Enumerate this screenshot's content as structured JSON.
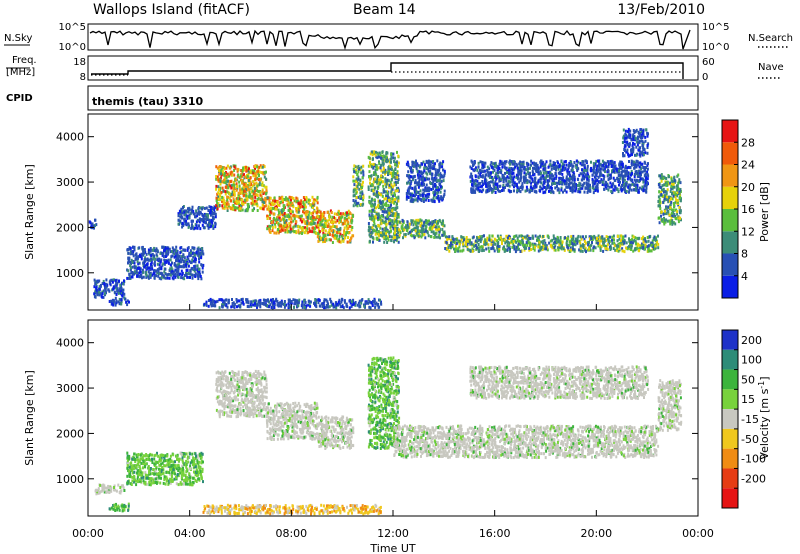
{
  "header": {
    "station": "Wallops Island (fitACF)",
    "beam": "Beam 14",
    "date": "13/Feb/2010"
  },
  "strips": {
    "nsky_label": "N.Sky",
    "nsky_ticks": [
      "10^5",
      "10^0"
    ],
    "nsearch_label": "N.Search",
    "nsearch_ticks": [
      "10^5",
      "10^0"
    ],
    "freq_label": "Freq.",
    "freq_unit": "[MHz]",
    "freq_ticks": [
      "18",
      "8"
    ],
    "nave_label": "Nave",
    "nave_ticks": [
      "60",
      "0"
    ],
    "cpid_label": "CPID",
    "cpid_value": "themis (tau) 3310"
  },
  "axes": {
    "ylabel": "Slant Range [km]",
    "xlabel": "Time UT",
    "yticks": [
      "1000",
      "2000",
      "3000",
      "4000"
    ],
    "xticks": [
      "00:00",
      "04:00",
      "08:00",
      "12:00",
      "16:00",
      "20:00",
      "00:00"
    ]
  },
  "colorbars": {
    "power": {
      "label": "Power [dB]",
      "ticks": [
        "4",
        "8",
        "12",
        "16",
        "20",
        "24",
        "28"
      ],
      "colors": [
        "#0a1ee6",
        "#2850b4",
        "#3c8c78",
        "#5abe3c",
        "#e6d20a",
        "#f09614",
        "#f05a0a",
        "#e61414"
      ]
    },
    "velocity": {
      "label": "Velocity [m s",
      "label_sup": "-1",
      "label_end": "]",
      "ticks": [
        "200",
        "100",
        "50",
        "15",
        "-15",
        "-50",
        "-100",
        "-200"
      ],
      "colors": [
        "#1e32c8",
        "#2d8c78",
        "#3cb43c",
        "#78d23c",
        "#c8c8c0",
        "#f0c81e",
        "#f08c14",
        "#e63c14",
        "#e61414"
      ]
    }
  },
  "chart_data": [
    {
      "type": "heatmap",
      "name": "Power",
      "x_range_hours": [
        0,
        24
      ],
      "y_range_km": [
        180,
        4500
      ],
      "features": [
        {
          "t": [
            0.0,
            0.3
          ],
          "r": [
            2000,
            2200
          ],
          "level": "low"
        },
        {
          "t": [
            0.2,
            1.4
          ],
          "r": [
            480,
            880
          ],
          "level": "low"
        },
        {
          "t": [
            0.8,
            1.6
          ],
          "r": [
            320,
            480
          ],
          "level": "low"
        },
        {
          "t": [
            1.5,
            4.5
          ],
          "r": [
            900,
            1600
          ],
          "level": "low"
        },
        {
          "t": [
            3.5,
            5.0
          ],
          "r": [
            2000,
            2500
          ],
          "level": "low"
        },
        {
          "t": [
            5.0,
            7.0
          ],
          "r": [
            2400,
            3400
          ],
          "level": "high"
        },
        {
          "t": [
            7.0,
            9.0
          ],
          "r": [
            1900,
            2700
          ],
          "level": "high"
        },
        {
          "t": [
            9.0,
            10.4
          ],
          "r": [
            1700,
            2400
          ],
          "level": "high"
        },
        {
          "t": [
            10.4,
            10.8
          ],
          "r": [
            2500,
            3400
          ],
          "level": "mid"
        },
        {
          "t": [
            11.0,
            12.2
          ],
          "r": [
            1700,
            3700
          ],
          "level": "mid"
        },
        {
          "t": [
            12.0,
            14.0
          ],
          "r": [
            1800,
            2200
          ],
          "level": "mid"
        },
        {
          "t": [
            14.0,
            22.4
          ],
          "r": [
            1500,
            1850
          ],
          "level": "mid"
        },
        {
          "t": [
            12.5,
            14.0
          ],
          "r": [
            2600,
            3500
          ],
          "level": "low"
        },
        {
          "t": [
            15.0,
            22.0
          ],
          "r": [
            2800,
            3500
          ],
          "level": "low"
        },
        {
          "t": [
            21.0,
            22.0
          ],
          "r": [
            3600,
            4200
          ],
          "level": "low"
        },
        {
          "t": [
            22.4,
            23.3
          ],
          "r": [
            2100,
            3200
          ],
          "level": "mid"
        },
        {
          "t": [
            4.5,
            11.5
          ],
          "r": [
            260,
            450
          ],
          "level": "low"
        }
      ]
    },
    {
      "type": "heatmap",
      "name": "Velocity",
      "x_range_hours": [
        0,
        24
      ],
      "y_range_km": [
        180,
        4500
      ],
      "features": [
        {
          "t": [
            0.2,
            1.4
          ],
          "r": [
            700,
            900
          ],
          "level": "ground"
        },
        {
          "t": [
            0.8,
            1.6
          ],
          "r": [
            320,
            480
          ],
          "level": "positive"
        },
        {
          "t": [
            1.5,
            4.5
          ],
          "r": [
            900,
            1600
          ],
          "level": "positive"
        },
        {
          "t": [
            5.0,
            7.0
          ],
          "r": [
            2400,
            3400
          ],
          "level": "ground"
        },
        {
          "t": [
            7.0,
            9.0
          ],
          "r": [
            1900,
            2700
          ],
          "level": "ground"
        },
        {
          "t": [
            9.0,
            10.4
          ],
          "r": [
            1700,
            2400
          ],
          "level": "ground"
        },
        {
          "t": [
            11.0,
            12.2
          ],
          "r": [
            1700,
            3700
          ],
          "level": "positive"
        },
        {
          "t": [
            12.0,
            22.4
          ],
          "r": [
            1500,
            2200
          ],
          "level": "ground"
        },
        {
          "t": [
            15.0,
            22.0
          ],
          "r": [
            2800,
            3500
          ],
          "level": "ground"
        },
        {
          "t": [
            22.4,
            23.3
          ],
          "r": [
            2100,
            3200
          ],
          "level": "ground"
        },
        {
          "t": [
            4.5,
            11.5
          ],
          "r": [
            260,
            450
          ],
          "level": "negative"
        }
      ]
    }
  ]
}
